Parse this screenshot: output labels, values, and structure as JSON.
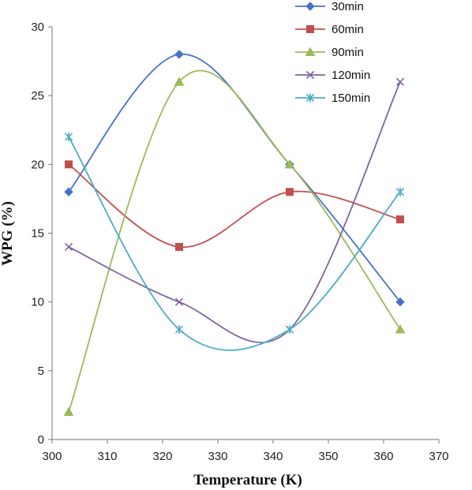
{
  "chart_data": {
    "type": "scatter",
    "title": "",
    "xlabel": "Temperature (K)",
    "ylabel": "WPG (%)",
    "xlim": [
      300,
      370
    ],
    "ylim": [
      0,
      30
    ],
    "xticks": [
      300,
      310,
      320,
      330,
      340,
      350,
      360,
      370
    ],
    "yticks": [
      0,
      5,
      10,
      15,
      20,
      25,
      30
    ],
    "grid": false,
    "smooth_lines": true,
    "legend_position": "top-right",
    "x": [
      303,
      323,
      343,
      363
    ],
    "series": [
      {
        "name": "30min",
        "marker": "diamond",
        "color": "#4472C4",
        "values": [
          18,
          28,
          20,
          10
        ]
      },
      {
        "name": "60min",
        "marker": "square",
        "color": "#C0504D",
        "values": [
          20,
          14,
          18,
          16
        ]
      },
      {
        "name": "90min",
        "marker": "triangle",
        "color": "#9BBB59",
        "values": [
          2,
          26,
          20,
          8
        ]
      },
      {
        "name": "120min",
        "marker": "x",
        "color": "#8064A2",
        "values": [
          14,
          10,
          8,
          26
        ]
      },
      {
        "name": "150min",
        "marker": "star",
        "color": "#4BACC6",
        "values": [
          22,
          8,
          8,
          18
        ]
      }
    ]
  }
}
